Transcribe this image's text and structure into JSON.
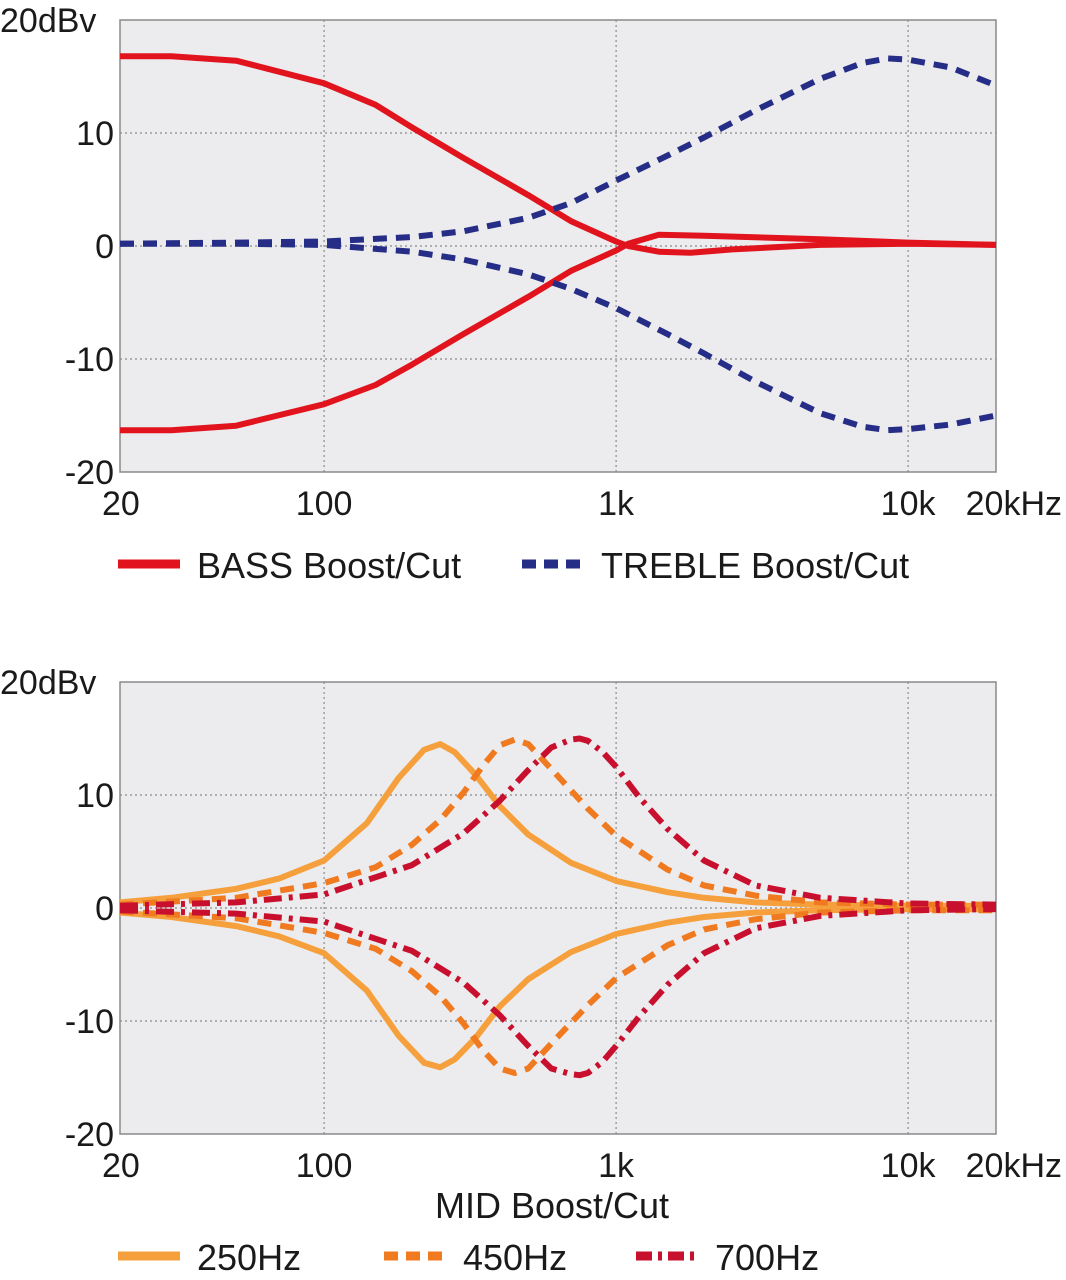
{
  "colors": {
    "plot_bg": "#ececee",
    "grid": "#8a8a8a",
    "frame": "#8a8a8a",
    "bass": "#e1141e",
    "treble": "#262d86",
    "mid_250": "#f5a03c",
    "mid_450": "#f07a20",
    "mid_700": "#c8102e"
  },
  "chart_data": [
    {
      "type": "line",
      "scale": {
        "x": "log",
        "y": "linear"
      },
      "grid": true,
      "xlim": [
        20,
        20000
      ],
      "ylim": [
        -20,
        20
      ],
      "x_ticks": [
        {
          "value": 20,
          "label": "20"
        },
        {
          "value": 100,
          "label": "100"
        },
        {
          "value": 1000,
          "label": "1k"
        },
        {
          "value": 10000,
          "label": "10k"
        },
        {
          "value": 20000,
          "label": "20kHz"
        }
      ],
      "y_ticks": [
        {
          "value": 20,
          "label": "20dBv"
        },
        {
          "value": 10,
          "label": "10"
        },
        {
          "value": 0,
          "label": "0"
        },
        {
          "value": -10,
          "label": "-10"
        },
        {
          "value": -20,
          "label": "-20"
        }
      ],
      "legend": {
        "placement": "bottom",
        "entries": [
          "BASS Boost/Cut",
          "TREBLE Boost/Cut"
        ]
      },
      "series": [
        {
          "name": "BASS Boost/Cut",
          "style": "solid",
          "color_key": "bass",
          "x": [
            20,
            30,
            50,
            100,
            150,
            200,
            300,
            500,
            700,
            1000,
            1100,
            1400,
            1800,
            2500,
            5000,
            10000,
            20000
          ],
          "y": [
            16.8,
            16.8,
            16.4,
            14.4,
            12.5,
            10.5,
            7.8,
            4.5,
            2.2,
            0.4,
            0.0,
            -0.5,
            -0.6,
            -0.3,
            0.1,
            0.2,
            0.1
          ]
        },
        {
          "name": "BASS Boost/Cut",
          "style": "solid",
          "color_key": "bass",
          "x": [
            20,
            30,
            50,
            100,
            150,
            200,
            300,
            500,
            700,
            1000,
            1100,
            1400,
            2000,
            5000,
            10000,
            20000
          ],
          "y": [
            -16.3,
            -16.3,
            -15.9,
            -14.0,
            -12.3,
            -10.5,
            -7.8,
            -4.5,
            -2.2,
            -0.4,
            0.2,
            1.0,
            0.9,
            0.6,
            0.3,
            0.1
          ]
        },
        {
          "name": "TREBLE Boost/Cut",
          "style": "dashed",
          "color_key": "treble",
          "x": [
            20,
            50,
            100,
            200,
            300,
            500,
            700,
            1000,
            1500,
            2000,
            3000,
            5000,
            7000,
            8500,
            10000,
            14000,
            20000
          ],
          "y": [
            0.2,
            0.3,
            0.4,
            0.8,
            1.3,
            2.5,
            3.8,
            5.8,
            8.0,
            9.6,
            12.0,
            14.8,
            16.2,
            16.6,
            16.5,
            15.8,
            14.2
          ]
        },
        {
          "name": "TREBLE Boost/Cut",
          "style": "dashed",
          "color_key": "treble",
          "x": [
            20,
            50,
            100,
            200,
            300,
            500,
            700,
            1000,
            1500,
            2000,
            3000,
            5000,
            7000,
            8500,
            10000,
            14000,
            20000
          ],
          "y": [
            0.2,
            0.2,
            0.1,
            -0.5,
            -1.2,
            -2.5,
            -3.8,
            -5.5,
            -7.8,
            -9.5,
            -12.0,
            -14.8,
            -16.0,
            -16.3,
            -16.2,
            -15.8,
            -15.0
          ]
        }
      ]
    },
    {
      "type": "line",
      "scale": {
        "x": "log",
        "y": "linear"
      },
      "grid": true,
      "xlim": [
        20,
        20000
      ],
      "ylim": [
        -20,
        20
      ],
      "x_ticks": [
        {
          "value": 20,
          "label": "20"
        },
        {
          "value": 100,
          "label": "100"
        },
        {
          "value": 1000,
          "label": "1k"
        },
        {
          "value": 10000,
          "label": "10k"
        },
        {
          "value": 20000,
          "label": "20kHz"
        }
      ],
      "y_ticks": [
        {
          "value": 20,
          "label": "20dBv"
        },
        {
          "value": 10,
          "label": "10"
        },
        {
          "value": 0,
          "label": "0"
        },
        {
          "value": -10,
          "label": "-10"
        },
        {
          "value": -20,
          "label": "-20"
        }
      ],
      "xlabel": "MID Boost/Cut",
      "legend": {
        "placement": "bottom",
        "entries": [
          "250Hz",
          "450Hz",
          "700Hz"
        ]
      },
      "series": [
        {
          "name": "250Hz",
          "style": "solid",
          "color_key": "mid_250",
          "x": [
            20,
            30,
            50,
            70,
            100,
            140,
            180,
            220,
            250,
            280,
            330,
            400,
            500,
            700,
            1000,
            1500,
            2000,
            3000,
            5000,
            10000,
            20000
          ],
          "y": [
            0.5,
            0.9,
            1.7,
            2.6,
            4.2,
            7.5,
            11.5,
            14.0,
            14.5,
            13.8,
            11.8,
            9.0,
            6.5,
            4.0,
            2.4,
            1.4,
            0.9,
            0.5,
            0.3,
            0.2,
            0.2
          ]
        },
        {
          "name": "250Hz",
          "style": "solid",
          "color_key": "mid_250",
          "x": [
            20,
            30,
            50,
            70,
            100,
            140,
            180,
            220,
            250,
            280,
            330,
            400,
            500,
            700,
            1000,
            1500,
            2000,
            3000,
            5000,
            10000,
            20000
          ],
          "y": [
            -0.4,
            -0.8,
            -1.6,
            -2.5,
            -4.0,
            -7.3,
            -11.3,
            -13.7,
            -14.1,
            -13.4,
            -11.5,
            -8.7,
            -6.3,
            -3.9,
            -2.3,
            -1.3,
            -0.8,
            -0.4,
            -0.2,
            -0.1,
            -0.1
          ]
        },
        {
          "name": "450Hz",
          "style": "dashed",
          "color_key": "mid_450",
          "x": [
            20,
            50,
            100,
            150,
            200,
            250,
            300,
            350,
            400,
            450,
            500,
            600,
            800,
            1000,
            1500,
            2000,
            3000,
            5000,
            10000,
            20000
          ],
          "y": [
            0.3,
            0.9,
            2.2,
            3.6,
            5.6,
            7.8,
            10.2,
            12.6,
            14.4,
            14.9,
            14.5,
            12.3,
            8.8,
            6.4,
            3.4,
            2.0,
            1.1,
            0.5,
            0.3,
            0.3
          ]
        },
        {
          "name": "450Hz",
          "style": "dashed",
          "color_key": "mid_450",
          "x": [
            20,
            50,
            100,
            150,
            200,
            250,
            300,
            350,
            400,
            450,
            500,
            600,
            800,
            1000,
            1500,
            2000,
            3000,
            5000,
            10000,
            20000
          ],
          "y": [
            -0.3,
            -0.9,
            -2.2,
            -3.6,
            -5.6,
            -7.8,
            -10.2,
            -12.6,
            -14.2,
            -14.6,
            -14.2,
            -12.0,
            -8.6,
            -6.2,
            -3.3,
            -1.9,
            -1.0,
            -0.4,
            -0.2,
            -0.2
          ]
        },
        {
          "name": "700Hz",
          "style": "dashdot",
          "color_key": "mid_700",
          "x": [
            20,
            50,
            100,
            200,
            300,
            400,
            500,
            600,
            700,
            750,
            800,
            900,
            1000,
            1200,
            1500,
            2000,
            3000,
            5000,
            10000,
            20000
          ],
          "y": [
            0.2,
            0.5,
            1.2,
            3.8,
            6.6,
            9.5,
            12.2,
            14.2,
            14.9,
            15.0,
            14.8,
            13.8,
            12.5,
            9.8,
            7.0,
            4.2,
            2.0,
            0.9,
            0.4,
            0.3
          ]
        },
        {
          "name": "700Hz",
          "style": "dashdot",
          "color_key": "mid_700",
          "x": [
            20,
            50,
            100,
            200,
            300,
            400,
            500,
            600,
            700,
            750,
            800,
            900,
            1000,
            1200,
            1500,
            2000,
            3000,
            5000,
            10000,
            20000
          ],
          "y": [
            -0.2,
            -0.5,
            -1.2,
            -3.8,
            -6.6,
            -9.5,
            -12.2,
            -14.2,
            -14.7,
            -14.8,
            -14.6,
            -13.6,
            -12.2,
            -9.6,
            -6.8,
            -4.0,
            -1.8,
            -0.7,
            -0.2,
            -0.1
          ]
        }
      ]
    }
  ]
}
